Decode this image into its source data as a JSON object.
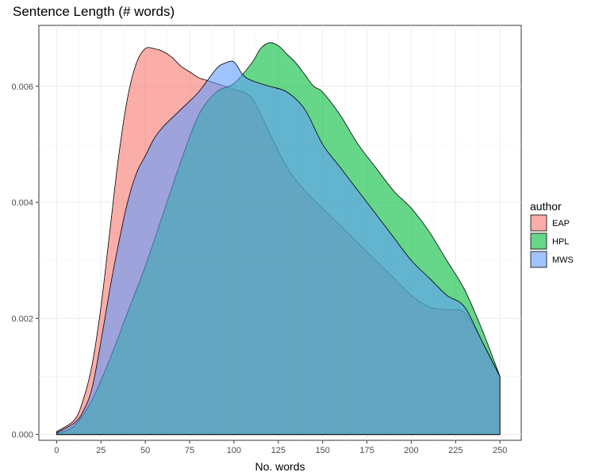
{
  "chart_data": {
    "type": "area",
    "title": "Sentence Length (# words)",
    "xlabel": "No. words",
    "ylabel": "",
    "xlim": [
      -10,
      262
    ],
    "ylim": [
      -0.0001,
      0.00705
    ],
    "x_ticks": [
      0,
      25,
      50,
      75,
      100,
      125,
      150,
      175,
      200,
      225,
      250
    ],
    "y_ticks": [
      0.0,
      0.002,
      0.004,
      0.006
    ],
    "y_tick_labels": [
      "0.000",
      "0.002",
      "0.004",
      "0.006"
    ],
    "grid": true,
    "legend_title": "author",
    "legend_position": "right",
    "series": [
      {
        "name": "EAP",
        "color": "#F8766D",
        "x": [
          0,
          10,
          15,
          20,
          25,
          30,
          35,
          40,
          45,
          50,
          55,
          60,
          65,
          70,
          75,
          80,
          85,
          90,
          95,
          100,
          110,
          120,
          130,
          140,
          150,
          160,
          170,
          180,
          190,
          200,
          210,
          220,
          230,
          240,
          250
        ],
        "y": [
          5e-05,
          0.00025,
          0.0006,
          0.0012,
          0.0022,
          0.0035,
          0.0048,
          0.0058,
          0.0064,
          0.00665,
          0.00665,
          0.0066,
          0.0065,
          0.00635,
          0.00625,
          0.00615,
          0.0061,
          0.00605,
          0.006,
          0.00595,
          0.0058,
          0.0052,
          0.0046,
          0.0042,
          0.0039,
          0.0036,
          0.0033,
          0.003,
          0.0027,
          0.0024,
          0.0022,
          0.00215,
          0.0021,
          0.0016,
          0.001
        ]
      },
      {
        "name": "HPL",
        "color": "#00BA38",
        "x": [
          0,
          10,
          20,
          30,
          40,
          50,
          60,
          70,
          80,
          90,
          100,
          110,
          115,
          120,
          125,
          130,
          135,
          140,
          145,
          150,
          160,
          170,
          180,
          190,
          200,
          210,
          220,
          230,
          240,
          250
        ],
        "y": [
          2e-05,
          0.00015,
          0.0006,
          0.0013,
          0.0021,
          0.0029,
          0.0038,
          0.0047,
          0.0055,
          0.0059,
          0.00605,
          0.0064,
          0.00665,
          0.00675,
          0.0067,
          0.00655,
          0.0064,
          0.0062,
          0.006,
          0.0059,
          0.0055,
          0.005,
          0.0046,
          0.0042,
          0.0039,
          0.0035,
          0.003,
          0.0025,
          0.0018,
          0.001
        ]
      },
      {
        "name": "MWS",
        "color": "#619CFF",
        "x": [
          0,
          10,
          15,
          20,
          25,
          30,
          35,
          40,
          45,
          50,
          55,
          60,
          70,
          80,
          90,
          95,
          100,
          105,
          110,
          120,
          130,
          140,
          150,
          160,
          170,
          180,
          190,
          200,
          210,
          220,
          230,
          240,
          250
        ],
        "y": [
          3e-05,
          0.0002,
          0.0004,
          0.0008,
          0.0016,
          0.0025,
          0.0033,
          0.004,
          0.0045,
          0.0048,
          0.0051,
          0.0053,
          0.0056,
          0.0059,
          0.0063,
          0.0064,
          0.00642,
          0.0062,
          0.0061,
          0.006,
          0.0059,
          0.0056,
          0.005,
          0.0046,
          0.0042,
          0.0038,
          0.0034,
          0.003,
          0.0027,
          0.0024,
          0.0022,
          0.0016,
          0.001
        ]
      }
    ]
  }
}
